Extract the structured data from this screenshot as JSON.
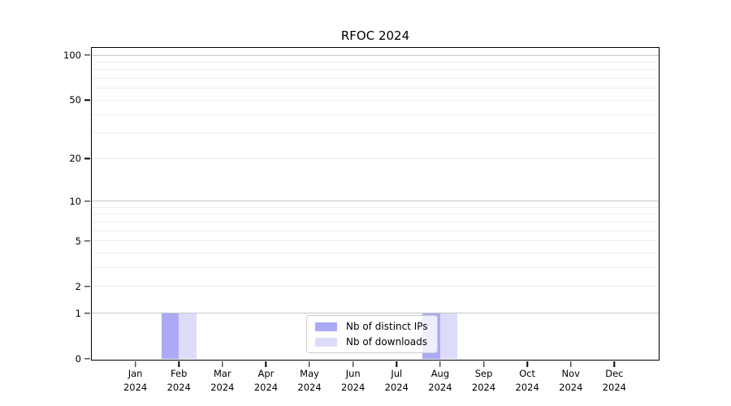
{
  "chart_data": {
    "type": "bar",
    "title": "RFOC 2024",
    "x_axis": {
      "categories": [
        {
          "month": "Jan",
          "year": "2024"
        },
        {
          "month": "Feb",
          "year": "2024"
        },
        {
          "month": "Mar",
          "year": "2024"
        },
        {
          "month": "Apr",
          "year": "2024"
        },
        {
          "month": "May",
          "year": "2024"
        },
        {
          "month": "Jun",
          "year": "2024"
        },
        {
          "month": "Jul",
          "year": "2024"
        },
        {
          "month": "Aug",
          "year": "2024"
        },
        {
          "month": "Sep",
          "year": "2024"
        },
        {
          "month": "Oct",
          "year": "2024"
        },
        {
          "month": "Nov",
          "year": "2024"
        },
        {
          "month": "Dec",
          "year": "2024"
        }
      ]
    },
    "y_axis": {
      "scale": "log10(value+1)",
      "top_value": 112,
      "ticks": [
        {
          "value": 0,
          "label": "0"
        },
        {
          "value": 1,
          "label": "1"
        },
        {
          "value": 2,
          "label": "2"
        },
        {
          "value": 5,
          "label": "5"
        },
        {
          "value": 10,
          "label": "10"
        },
        {
          "value": 20,
          "label": "20"
        },
        {
          "value": 50,
          "label": "50"
        },
        {
          "value": 100,
          "label": "100"
        }
      ],
      "major_gridlines": [
        1,
        10,
        100
      ],
      "minor_gridlines": [
        2,
        3,
        4,
        5,
        6,
        7,
        8,
        9,
        20,
        30,
        40,
        50,
        60,
        70,
        80,
        90
      ]
    },
    "series": [
      {
        "name": "Nb of distinct IPs",
        "color": "#aaaaf7",
        "values": [
          0,
          1,
          0,
          0,
          0,
          0,
          0,
          1,
          0,
          0,
          0,
          0
        ]
      },
      {
        "name": "Nb of downloads",
        "color": "#dcdcfa",
        "values": [
          0,
          1,
          0,
          0,
          0,
          0,
          0,
          1,
          0,
          0,
          0,
          0
        ]
      }
    ],
    "legend": {
      "position": "bottom-center"
    },
    "colors": {
      "major_grid": "#c6c6c6",
      "minor_grid": "#ededed",
      "axis": "#000000",
      "background": "#ffffff"
    }
  }
}
